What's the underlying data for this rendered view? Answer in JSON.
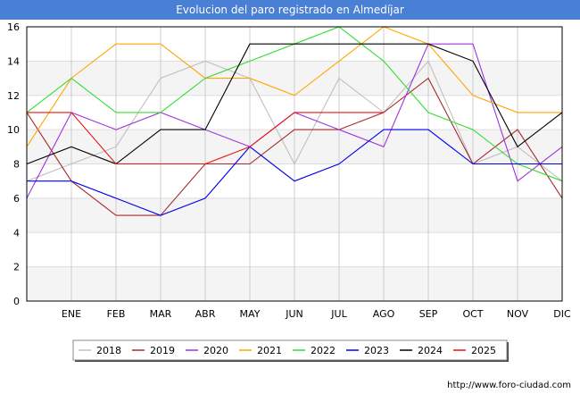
{
  "title": "Evolucion del paro registrado en Almedíjar",
  "footer": "http://www.foro-ciudad.com",
  "chart_data": {
    "type": "line",
    "categories": [
      "",
      "ENE",
      "FEB",
      "MAR",
      "ABR",
      "MAY",
      "JUN",
      "JUL",
      "AGO",
      "SEP",
      "OCT",
      "NOV",
      "DIC"
    ],
    "ylim": [
      0,
      16
    ],
    "yticks": [
      0,
      2,
      4,
      6,
      8,
      10,
      12,
      14,
      16
    ],
    "grid": true,
    "legend_position": "bottom",
    "series": [
      {
        "name": "2018",
        "color": "#c0c0c0",
        "values": [
          7,
          8,
          9,
          13,
          14,
          13,
          8,
          13,
          11,
          14,
          8,
          9,
          7
        ]
      },
      {
        "name": "2019",
        "color": "#a52a2a",
        "values": [
          11,
          7,
          5,
          5,
          8,
          8,
          10,
          10,
          11,
          13,
          8,
          10,
          6
        ]
      },
      {
        "name": "2020",
        "color": "#a033e0",
        "values": [
          6,
          11,
          10,
          11,
          10,
          9,
          11,
          10,
          9,
          15,
          15,
          7,
          9
        ]
      },
      {
        "name": "2021",
        "color": "#ffa500",
        "values": [
          9,
          13,
          15,
          15,
          13,
          13,
          12,
          14,
          16,
          15,
          12,
          11,
          11
        ]
      },
      {
        "name": "2022",
        "color": "#33dd33",
        "values": [
          11,
          13,
          11,
          11,
          13,
          14,
          15,
          16,
          14,
          11,
          10,
          8,
          7
        ]
      },
      {
        "name": "2023",
        "color": "#0000ee",
        "values": [
          7,
          7,
          6,
          5,
          6,
          9,
          7,
          8,
          10,
          10,
          8,
          8,
          8
        ]
      },
      {
        "name": "2024",
        "color": "#000000",
        "values": [
          8,
          9,
          8,
          10,
          10,
          15,
          15,
          15,
          15,
          15,
          14,
          9,
          11
        ]
      },
      {
        "name": "2025",
        "color": "#ee1111",
        "values": [
          11,
          11,
          8,
          8,
          8,
          9,
          11,
          11,
          11,
          null,
          null,
          null,
          null
        ]
      }
    ]
  }
}
